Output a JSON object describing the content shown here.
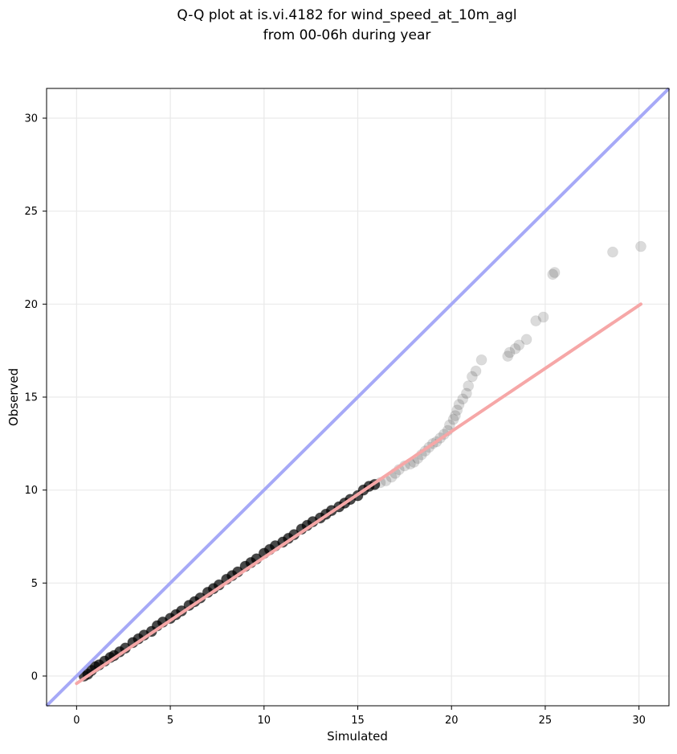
{
  "chart_data": {
    "type": "scatter",
    "title_line1": "Q-Q plot at is.vi.4182 for wind_speed_at_10m_agl",
    "title_line2": "from 00-06h during year",
    "xlabel": "Simulated",
    "ylabel": "Observed",
    "xlim": [
      -1.6,
      31.6
    ],
    "ylim": [
      -1.6,
      31.6
    ],
    "x_ticks": [
      0,
      5,
      10,
      15,
      20,
      25,
      30
    ],
    "y_ticks": [
      0,
      5,
      10,
      15,
      20,
      25,
      30
    ],
    "grid": true,
    "colors": {
      "points": "#000000",
      "identity_line": "#a6a9f7",
      "fit_line": "#f6a7a7",
      "grid": "#e9e9e9"
    },
    "identity_line": {
      "x": [
        -1.6,
        31.6
      ],
      "y": [
        -1.6,
        31.6
      ]
    },
    "fit_line": {
      "x": [
        0.0,
        30.1
      ],
      "y": [
        -0.4,
        20.0
      ]
    },
    "series": [
      {
        "x": [
          0.4,
          0.6,
          0.8,
          1.0,
          1.2,
          1.5,
          1.8,
          2.0,
          2.3,
          2.6,
          3.0,
          3.3,
          3.6,
          4.0,
          4.3,
          4.6,
          5.0,
          5.3,
          5.6,
          6.0,
          6.3,
          6.6,
          7.0,
          7.3,
          7.6,
          8.0,
          8.3,
          8.6,
          9.0,
          9.3,
          9.6,
          10.0,
          10.3,
          10.6,
          11.0,
          11.3,
          11.6,
          12.0,
          12.3,
          12.6,
          13.0,
          13.3,
          13.6,
          14.0,
          14.3,
          14.6,
          15.0,
          15.3,
          15.6,
          15.9,
          16.2,
          16.5,
          16.8,
          17.0,
          17.2,
          17.5,
          17.8,
          18.0,
          18.2,
          18.4,
          18.6,
          18.8,
          19.0,
          19.2,
          19.4,
          19.6,
          19.8,
          19.9,
          20.1,
          20.2,
          20.3,
          20.4,
          20.6,
          20.8,
          20.9,
          21.1,
          21.3,
          21.6,
          23.0,
          23.1,
          23.4,
          23.6,
          24.0,
          24.5,
          24.9,
          25.4,
          25.5,
          28.6,
          30.1
        ],
        "y": [
          0.0,
          0.1,
          0.3,
          0.5,
          0.6,
          0.8,
          1.0,
          1.1,
          1.3,
          1.5,
          1.8,
          2.0,
          2.2,
          2.4,
          2.7,
          2.9,
          3.1,
          3.3,
          3.5,
          3.8,
          4.0,
          4.2,
          4.5,
          4.7,
          4.9,
          5.2,
          5.4,
          5.6,
          5.9,
          6.1,
          6.3,
          6.6,
          6.8,
          7.0,
          7.2,
          7.4,
          7.6,
          7.9,
          8.1,
          8.3,
          8.5,
          8.7,
          8.9,
          9.1,
          9.3,
          9.5,
          9.7,
          10.0,
          10.2,
          10.3,
          10.4,
          10.5,
          10.7,
          10.9,
          11.1,
          11.3,
          11.4,
          11.5,
          11.7,
          11.9,
          12.1,
          12.3,
          12.5,
          12.6,
          12.8,
          13.0,
          13.2,
          13.5,
          13.8,
          14.0,
          14.3,
          14.6,
          14.9,
          15.2,
          15.6,
          16.1,
          16.4,
          17.0,
          17.2,
          17.4,
          17.6,
          17.8,
          18.1,
          19.1,
          19.3,
          21.6,
          21.7,
          22.8,
          23.1
        ]
      }
    ]
  }
}
